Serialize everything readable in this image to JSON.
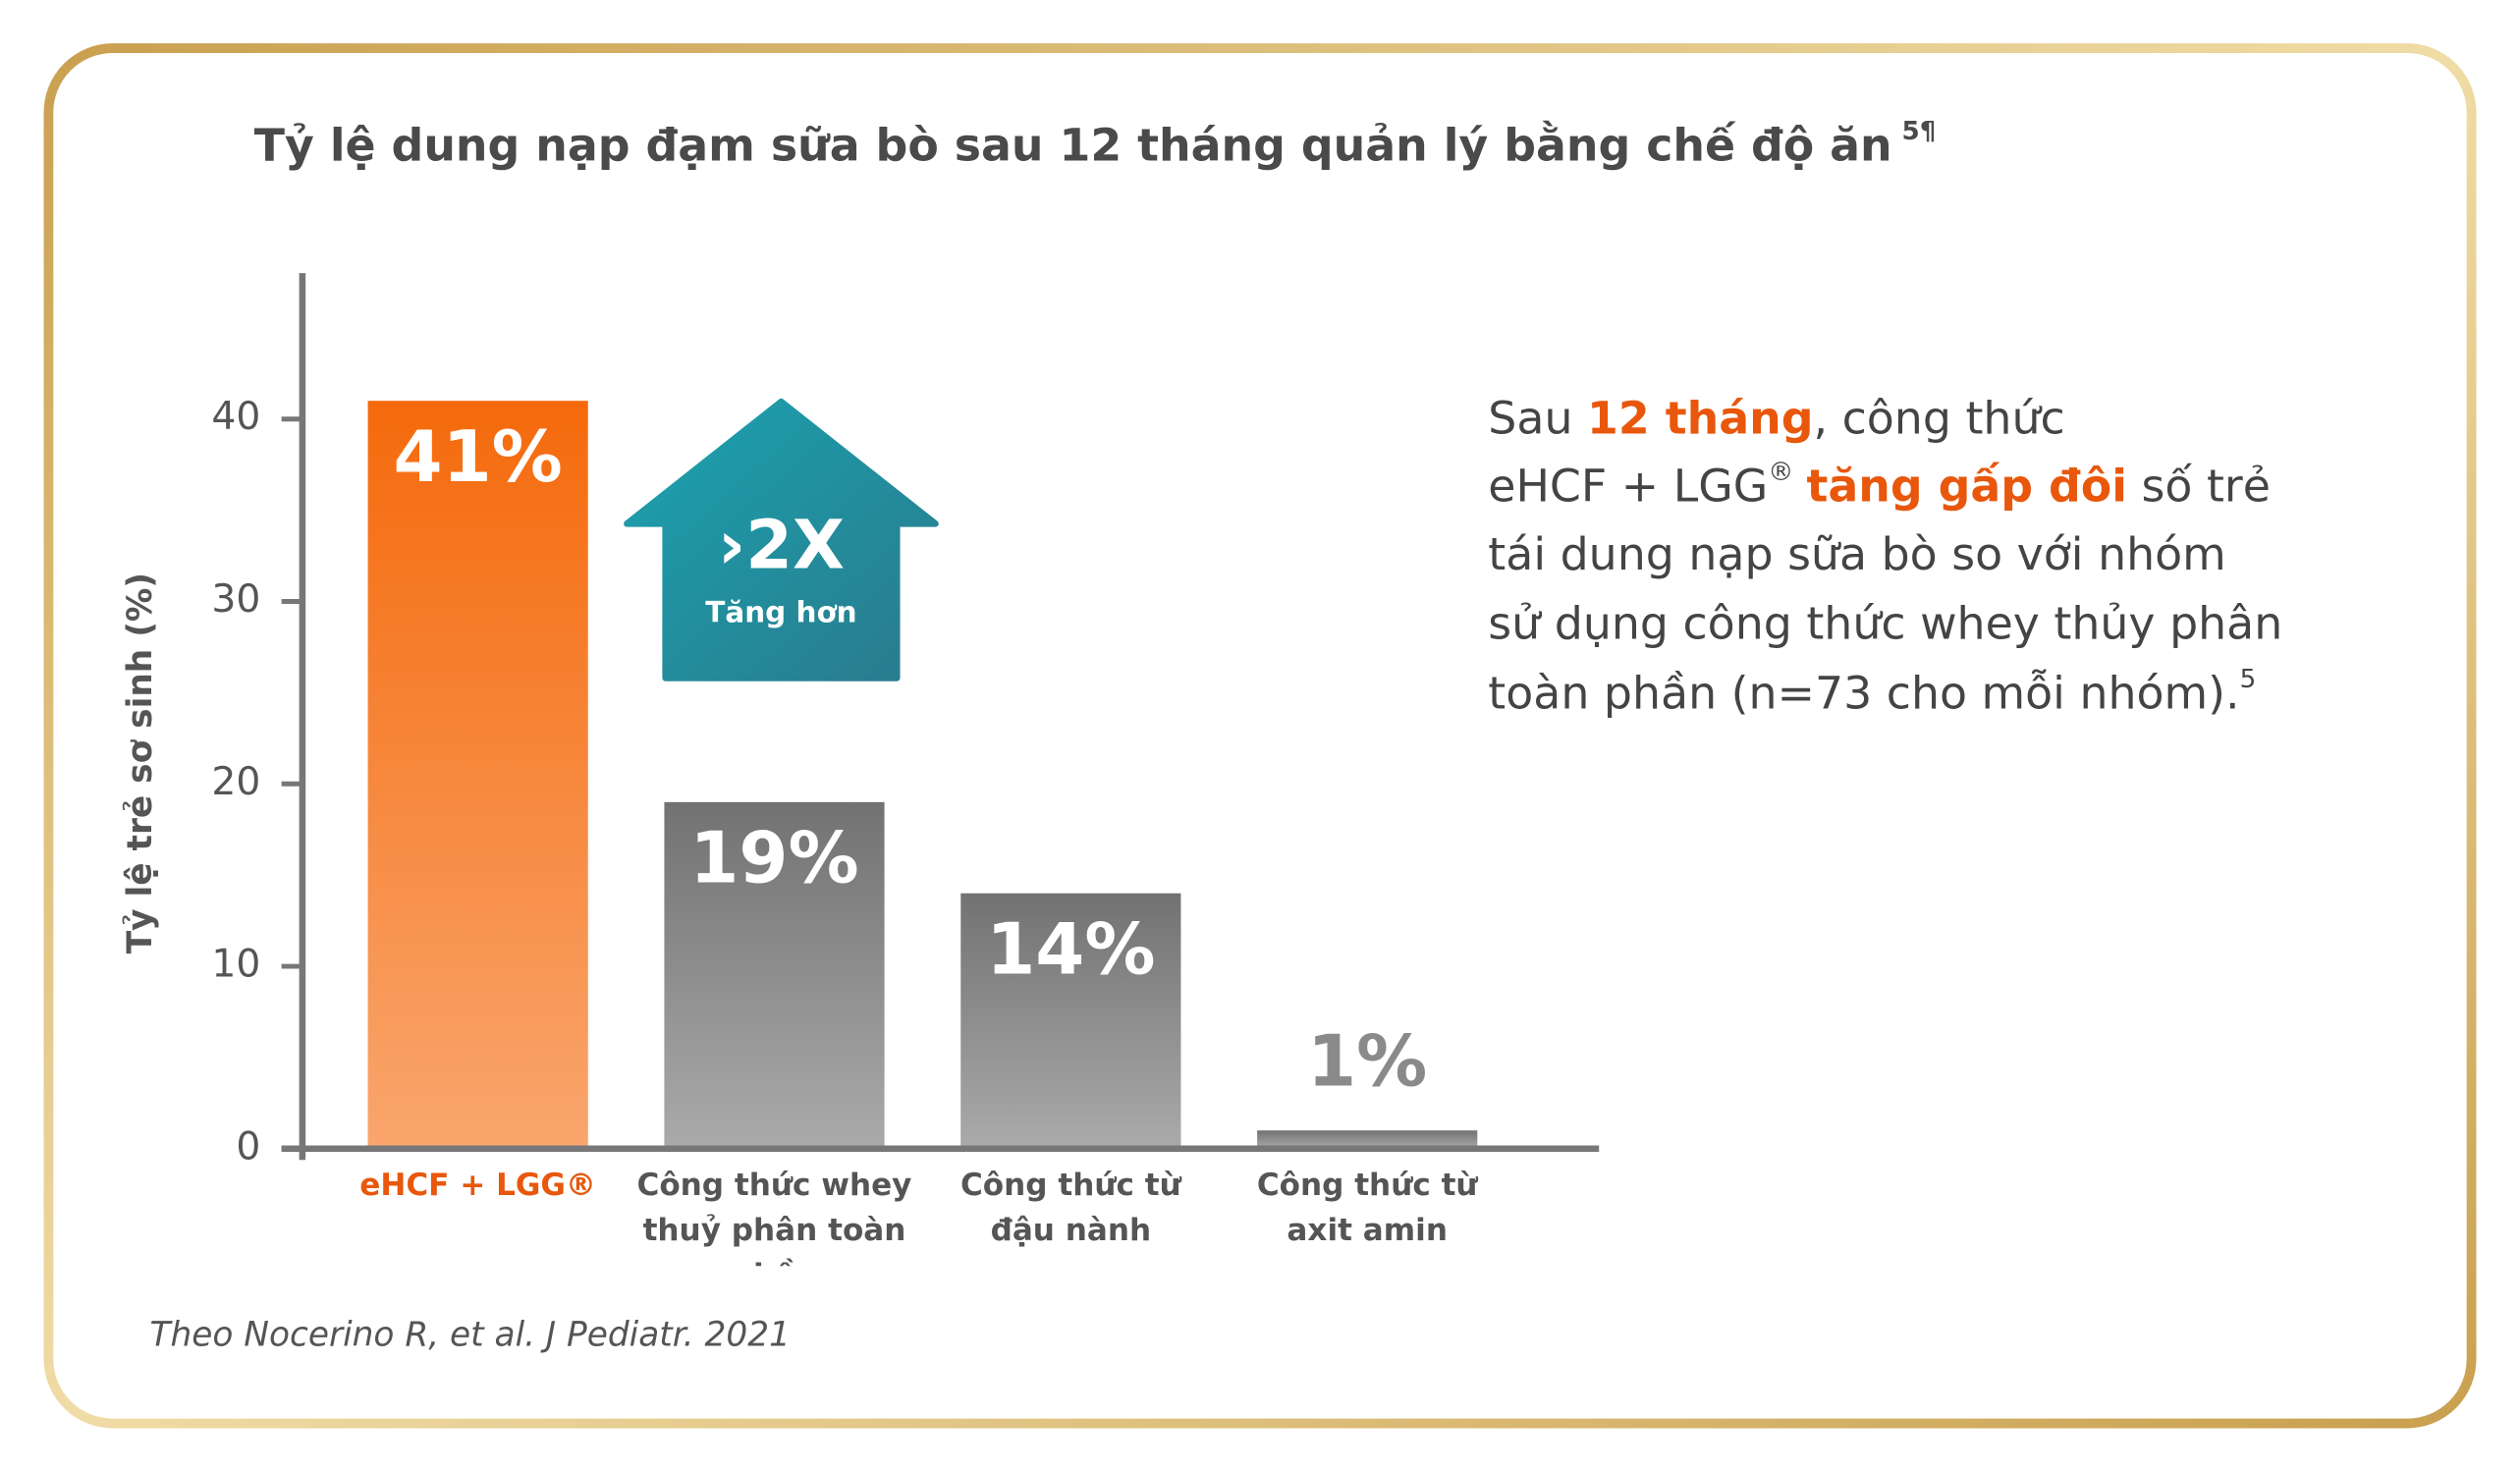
{
  "chart_data": {
    "type": "bar",
    "title": "Tỷ lệ dung nạp đạm sữa bò sau 12 tháng quản lý bằng chế độ ăn",
    "title_superscript": "5¶",
    "y_label": "Tỷ lệ trẻ sơ sinh (%)",
    "categories": [
      "eHCF + LGG®",
      "Công thức whey\nthuỷ phân toàn phần",
      "Công thức từ\nđậu nành",
      "Công thức từ\naxit amin"
    ],
    "values": [
      41,
      19,
      14,
      1
    ],
    "value_labels": [
      "41%",
      "19%",
      "14%",
      "1%"
    ],
    "colors": [
      "#f56a0c",
      "#727272",
      "#727272",
      "#727272"
    ],
    "ylim": [
      0,
      48
    ],
    "yticks": [
      0,
      10,
      20,
      30,
      40
    ],
    "annotation": {
      "value": "›2X",
      "text": "Tăng hơn"
    }
  },
  "callout": {
    "lines": [
      [
        "Sau ",
        "12 tháng",
        ", công thức"
      ],
      [
        "eHCF + LGG",
        "®",
        "tăng gấp đôi",
        " số trẻ"
      ],
      [
        "tái dung nạp sữa bò so với nhóm"
      ],
      [
        "sử dụng công thức whey thủy phân"
      ],
      [
        "toàn phần (n=73 cho mỗi nhóm).",
        "5"
      ]
    ]
  },
  "footnote": "Theo Nocerino R, et al. J Pediatr. 2021"
}
